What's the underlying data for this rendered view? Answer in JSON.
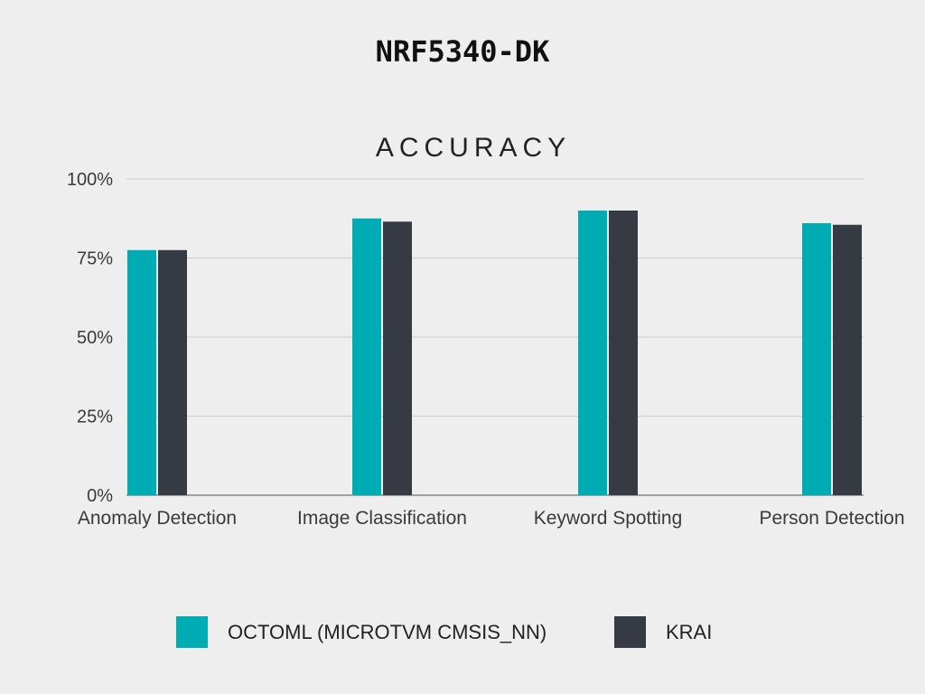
{
  "heading": "NRF5340-DK",
  "colors": {
    "background": "#eeeeee",
    "series_1": "#00acb4",
    "series_2": "#363a43",
    "grid": "#cccccc",
    "axis": "#888888"
  },
  "chart_data": {
    "type": "bar",
    "title": "ACCURACY",
    "xlabel": "",
    "ylabel": "",
    "categories": [
      "Anomaly Detection",
      "Image Classification",
      "Keyword Spotting",
      "Person Detection"
    ],
    "series": [
      {
        "name": "OCTOML (MICROTVM CMSIS_NN)",
        "values": [
          77.5,
          87.5,
          90.0,
          86.0
        ]
      },
      {
        "name": "KRAI",
        "values": [
          77.5,
          86.5,
          90.0,
          85.5
        ]
      }
    ],
    "ylim": [
      0,
      100
    ],
    "yticks": [
      "0%",
      "25%",
      "50%",
      "75%",
      "100%"
    ],
    "grid": true,
    "legend": "bottom"
  }
}
